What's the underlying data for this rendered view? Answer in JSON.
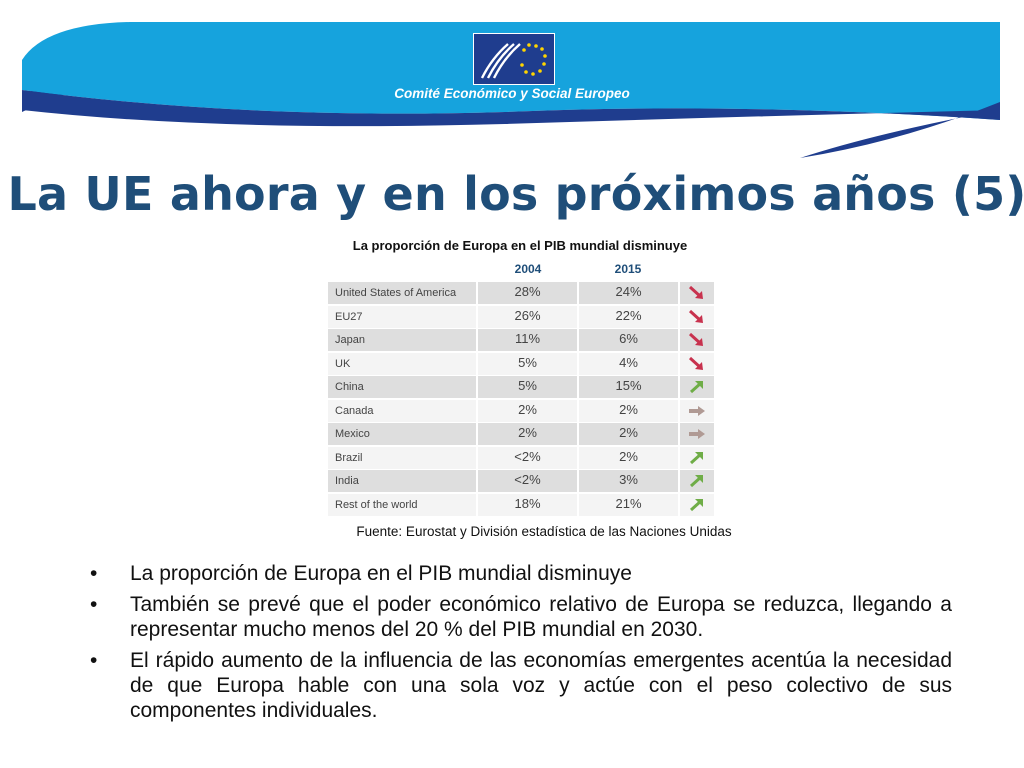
{
  "header": {
    "org_name": "Comité Económico y Social Europeo",
    "logo_icon": "eesc-eu-stars-logo",
    "colors": {
      "dark_blue": "#1f3d8e",
      "light_blue": "#16a3dd",
      "title_blue": "#1f4e79"
    }
  },
  "slide": {
    "title": "La UE ahora y en los próximos años (5)"
  },
  "table": {
    "caption": "La proporción de Europa en el PIB mundial disminuye",
    "years": [
      "2004",
      "2015"
    ],
    "rows": [
      {
        "country": "United States of America",
        "v2004": "28%",
        "v2015": "24%",
        "trend": "down"
      },
      {
        "country": "EU27",
        "v2004": "26%",
        "v2015": "22%",
        "trend": "down"
      },
      {
        "country": "Japan",
        "v2004": "11%",
        "v2015": "6%",
        "trend": "down"
      },
      {
        "country": "UK",
        "v2004": "5%",
        "v2015": "4%",
        "trend": "down"
      },
      {
        "country": "China",
        "v2004": "5%",
        "v2015": "15%",
        "trend": "up"
      },
      {
        "country": "Canada",
        "v2004": "2%",
        "v2015": "2%",
        "trend": "flat"
      },
      {
        "country": "Mexico",
        "v2004": "2%",
        "v2015": "2%",
        "trend": "flat"
      },
      {
        "country": "Brazil",
        "v2004": "<2%",
        "v2015": "2%",
        "trend": "up"
      },
      {
        "country": "India",
        "v2004": "<2%",
        "v2015": "3%",
        "trend": "up"
      },
      {
        "country": "Rest of the world",
        "v2004": "18%",
        "v2015": "21%",
        "trend": "up"
      }
    ],
    "trend_colors": {
      "down": "#c8324e",
      "up": "#6fad47",
      "flat": "#b09a94"
    }
  },
  "source": "Fuente: Eurostat y División estadística de las Naciones Unidas",
  "bullets": [
    "La proporción de Europa en el PIB mundial disminuye",
    "También se prevé que el poder económico relativo de Europa se reduzca, llegando a representar mucho menos del 20 % del PIB mundial en 2030.",
    "El rápido aumento de la influencia de las economías emergentes acentúa la necesidad de que Europa hable con una sola voz y actúe con el peso colectivo de sus componentes individuales."
  ]
}
